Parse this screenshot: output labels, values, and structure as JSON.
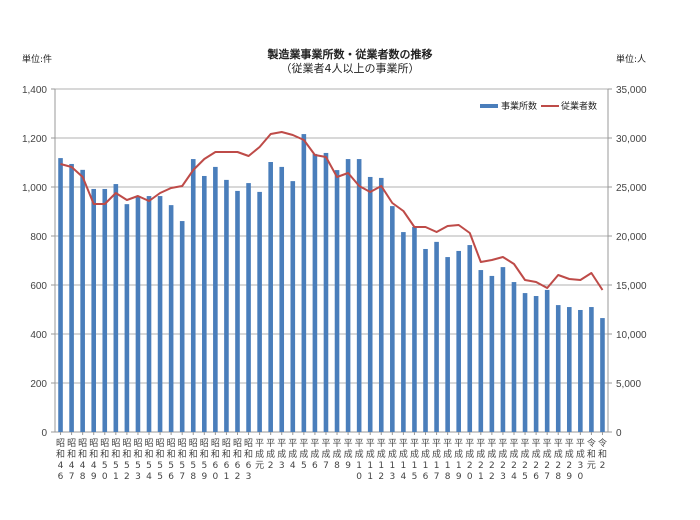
{
  "header": {
    "title": "製造業事業所数・従業者数の推移",
    "subtitle": "（従業者4人以上の事業所）",
    "unit_left": "単位:件",
    "unit_right": "単位:人"
  },
  "legend": {
    "establishments": "事業所数",
    "employees": "従業者数"
  },
  "colors": {
    "bars": "#4a7ebb",
    "line": "#be4b48",
    "grid": "#b0b0b0",
    "axis": "#999999"
  },
  "chart_data": {
    "type": "bar",
    "title": "製造業事業所数・従業者数の推移",
    "subtitle": "（従業者4人以上の事業所）",
    "xlabel": "",
    "ylabel": "単位:件",
    "y2label": "単位:人",
    "ylim": [
      0,
      1400
    ],
    "y2lim": [
      0,
      35000
    ],
    "yticks": [
      0,
      200,
      400,
      600,
      800,
      1000,
      1200,
      1400
    ],
    "yticklabels": [
      "0",
      "200",
      "400",
      "600",
      "800",
      "1,000",
      "1,200",
      "1,400"
    ],
    "y2ticks": [
      0,
      5000,
      10000,
      15000,
      20000,
      25000,
      30000,
      35000
    ],
    "y2ticklabels": [
      "0",
      "5,000",
      "10,000",
      "15,000",
      "20,000",
      "25,000",
      "30,000",
      "35,000"
    ],
    "grid": true,
    "legend_position": "top-right",
    "categories": [
      [
        "昭",
        "和",
        "4",
        "6"
      ],
      [
        "昭",
        "和",
        "4",
        "7"
      ],
      [
        "昭",
        "和",
        "4",
        "8"
      ],
      [
        "昭",
        "和",
        "4",
        "9"
      ],
      [
        "昭",
        "和",
        "5",
        "0"
      ],
      [
        "昭",
        "和",
        "5",
        "1"
      ],
      [
        "昭",
        "和",
        "5",
        "2"
      ],
      [
        "昭",
        "和",
        "5",
        "3"
      ],
      [
        "昭",
        "和",
        "5",
        "4"
      ],
      [
        "昭",
        "和",
        "5",
        "5"
      ],
      [
        "昭",
        "和",
        "5",
        "6"
      ],
      [
        "昭",
        "和",
        "5",
        "7"
      ],
      [
        "昭",
        "和",
        "5",
        "8"
      ],
      [
        "昭",
        "和",
        "5",
        "9"
      ],
      [
        "昭",
        "和",
        "6",
        "0"
      ],
      [
        "昭",
        "和",
        "6",
        "1"
      ],
      [
        "昭",
        "和",
        "6",
        "2"
      ],
      [
        "昭",
        "和",
        "6",
        "3"
      ],
      [
        "平",
        "成",
        "元",
        ""
      ],
      [
        "平",
        "成",
        "2",
        ""
      ],
      [
        "平",
        "成",
        "3",
        ""
      ],
      [
        "平",
        "成",
        "4",
        ""
      ],
      [
        "平",
        "成",
        "5",
        ""
      ],
      [
        "平",
        "成",
        "6",
        ""
      ],
      [
        "平",
        "成",
        "7",
        ""
      ],
      [
        "平",
        "成",
        "8",
        ""
      ],
      [
        "平",
        "成",
        "9",
        ""
      ],
      [
        "平",
        "成",
        "1",
        "0"
      ],
      [
        "平",
        "成",
        "1",
        "1"
      ],
      [
        "平",
        "成",
        "1",
        "2"
      ],
      [
        "平",
        "成",
        "1",
        "3"
      ],
      [
        "平",
        "成",
        "1",
        "4"
      ],
      [
        "平",
        "成",
        "1",
        "5"
      ],
      [
        "平",
        "成",
        "1",
        "6"
      ],
      [
        "平",
        "成",
        "1",
        "7"
      ],
      [
        "平",
        "成",
        "1",
        "8"
      ],
      [
        "平",
        "成",
        "1",
        "9"
      ],
      [
        "平",
        "成",
        "2",
        "0"
      ],
      [
        "平",
        "成",
        "2",
        "1"
      ],
      [
        "平",
        "成",
        "2",
        "2"
      ],
      [
        "平",
        "成",
        "2",
        "3"
      ],
      [
        "平",
        "成",
        "2",
        "4"
      ],
      [
        "平",
        "成",
        "2",
        "5"
      ],
      [
        "平",
        "成",
        "2",
        "6"
      ],
      [
        "平",
        "成",
        "2",
        "7"
      ],
      [
        "平",
        "成",
        "2",
        "8"
      ],
      [
        "平",
        "成",
        "2",
        "9"
      ],
      [
        "平",
        "成",
        "3",
        "0"
      ],
      [
        "令",
        "和",
        "元",
        ""
      ],
      [
        "令",
        "和",
        "2",
        ""
      ]
    ],
    "category_labels": [
      "昭和46",
      "昭和47",
      "昭和48",
      "昭和49",
      "昭和50",
      "昭和51",
      "昭和52",
      "昭和53",
      "昭和54",
      "昭和55",
      "昭和56",
      "昭和57",
      "昭和58",
      "昭和59",
      "昭和60",
      "昭和61",
      "昭和62",
      "昭和63",
      "平成元",
      "平成2",
      "平成3",
      "平成4",
      "平成5",
      "平成6",
      "平成7",
      "平成8",
      "平成9",
      "平成10",
      "平成11",
      "平成12",
      "平成13",
      "平成14",
      "平成15",
      "平成16",
      "平成17",
      "平成18",
      "平成19",
      "平成20",
      "平成21",
      "平成22",
      "平成23",
      "平成24",
      "平成25",
      "平成26",
      "平成27",
      "平成28",
      "平成29",
      "平成30",
      "令和元",
      "令和2"
    ],
    "series": [
      {
        "name": "事業所数",
        "type": "bar",
        "axis": "left",
        "values": [
          1118,
          1094,
          1070,
          992,
          992,
          1012,
          930,
          963,
          963,
          963,
          926,
          861,
          1114,
          1045,
          1082,
          1029,
          984,
          1016,
          980,
          1102,
          1082,
          1024,
          1216,
          1135,
          1139,
          1069,
          1114,
          1114,
          1041,
          1037,
          922,
          816,
          837,
          747,
          776,
          714,
          739,
          763,
          661,
          637,
          673,
          612,
          567,
          555,
          580,
          518,
          510,
          498,
          510,
          465
        ]
      },
      {
        "name": "従業者数",
        "type": "line",
        "axis": "right",
        "values": [
          27350,
          27040,
          26020,
          23270,
          23270,
          24390,
          23670,
          24080,
          23570,
          24390,
          24900,
          25100,
          26730,
          27860,
          28570,
          28570,
          28570,
          28160,
          29080,
          30410,
          30610,
          30310,
          29800,
          28270,
          28060,
          26020,
          26430,
          25100,
          24490,
          25100,
          23370,
          22550,
          20920,
          20920,
          20410,
          21020,
          21120,
          20310,
          17350,
          17550,
          17860,
          17140,
          15510,
          15310,
          14690,
          16020,
          15610,
          15510,
          16220,
          14490
        ]
      }
    ]
  }
}
